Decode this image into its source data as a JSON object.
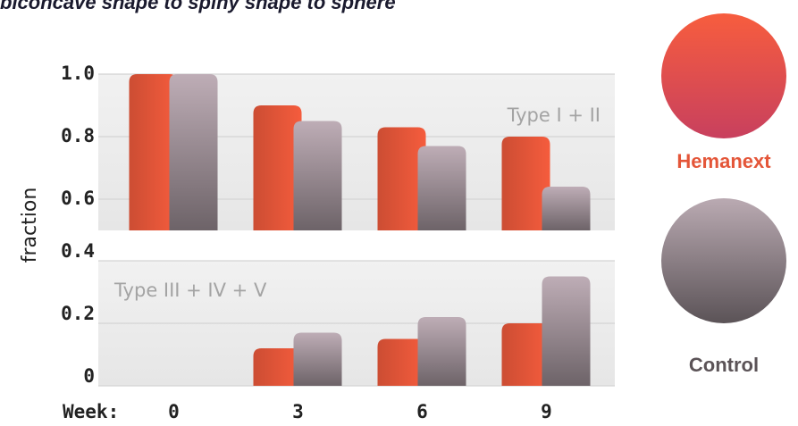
{
  "chart_data": [
    {
      "type": "bar",
      "title": "biconcave shape to spiny shape to sphere",
      "ylabel": "fraction",
      "annotation": "Type I + II",
      "ylim": [
        0.5,
        1.0
      ],
      "yticks": [
        0.6,
        0.8,
        {
          "value": 1.0,
          "label": "1.0"
        }
      ],
      "series": [
        {
          "name": "Hemanext",
          "color": "#f05a3c",
          "values": [
            1.0,
            0.9,
            0.83,
            0.8
          ]
        },
        {
          "name": "Control",
          "color": "#b5a5ad",
          "values": [
            1.0,
            0.85,
            0.77,
            0.64
          ]
        }
      ]
    },
    {
      "type": "bar",
      "xlabel": "Week:",
      "annotation": "Type III + IV + V",
      "categories": [
        "0",
        "3",
        "6",
        "9"
      ],
      "ylim": [
        0,
        0.4
      ],
      "yticks": [
        0,
        0.2,
        0.4
      ],
      "series": [
        {
          "name": "Hemanext",
          "color": "#f05a3c",
          "values": [
            0,
            0.12,
            0.15,
            0.2
          ]
        },
        {
          "name": "Control",
          "color": "#b5a5ad",
          "values": [
            0,
            0.17,
            0.22,
            0.35
          ]
        }
      ]
    }
  ]
}
